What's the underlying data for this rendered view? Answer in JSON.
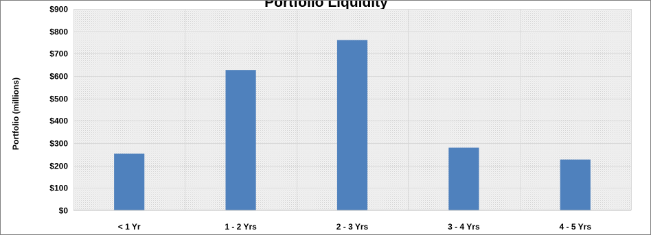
{
  "chart_data": {
    "type": "bar",
    "title": "Portfolio Liquidity",
    "xlabel": "",
    "ylabel": "Portfolio (millions)",
    "categories": [
      "< 1 Yr",
      "1 - 2 Yrs",
      "2 - 3 Yrs",
      "3 - 4 Yrs",
      "4 - 5 Yrs"
    ],
    "values": [
      253,
      627,
      761,
      280,
      227
    ],
    "ylim": [
      0,
      900
    ],
    "yticks": [
      0,
      100,
      200,
      300,
      400,
      500,
      600,
      700,
      800,
      900
    ],
    "ytick_labels": [
      "$0",
      "$100",
      "$200",
      "$300",
      "$400",
      "$500",
      "$600",
      "$700",
      "$800",
      "$900"
    ],
    "grid": true,
    "legend": "none",
    "colors": {
      "bar": "#4f81bd",
      "gridline": "#d9d9d9",
      "plot_background": "#efefef",
      "frame": "#7f7f7f"
    }
  }
}
